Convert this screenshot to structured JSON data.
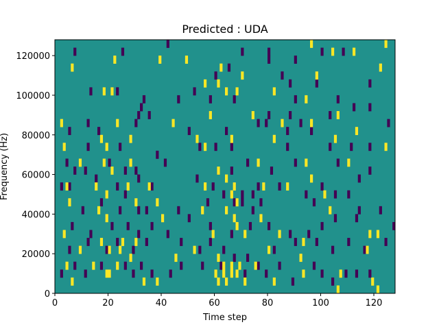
{
  "chart_data": {
    "type": "heatmap",
    "title": "Predicted : UDA",
    "xlabel": "Time step",
    "ylabel": "Frequency (Hz)",
    "xlim": [
      0,
      128
    ],
    "ylim": [
      0,
      128000
    ],
    "x_ticks": [
      0,
      20,
      40,
      60,
      80,
      100,
      120
    ],
    "y_ticks": [
      0,
      20000,
      40000,
      60000,
      80000,
      100000,
      120000
    ],
    "colors": {
      "background": "#21918c",
      "low": "#440154",
      "high": "#fde725"
    },
    "cell_width_steps": 1,
    "cell_height_hz": 4000,
    "low_cells": [
      [
        7,
        120000
      ],
      [
        25,
        120000
      ],
      [
        42,
        124000
      ],
      [
        70,
        120000
      ],
      [
        80,
        120000
      ],
      [
        80,
        116000
      ],
      [
        90,
        116000
      ],
      [
        100,
        120000
      ],
      [
        108,
        120000
      ],
      [
        60,
        108000
      ],
      [
        65,
        112000
      ],
      [
        85,
        108000
      ],
      [
        88,
        104000
      ],
      [
        98,
        104000
      ],
      [
        118,
        104000
      ],
      [
        13,
        100000
      ],
      [
        23,
        100000
      ],
      [
        33,
        96000
      ],
      [
        46,
        96000
      ],
      [
        52,
        100000
      ],
      [
        58,
        96000
      ],
      [
        67,
        96000
      ],
      [
        90,
        96000
      ],
      [
        106,
        96000
      ],
      [
        32,
        92000
      ],
      [
        80,
        88000
      ],
      [
        88,
        88000
      ],
      [
        112,
        92000
      ],
      [
        118,
        92000
      ],
      [
        12,
        84000
      ],
      [
        31,
        88000
      ],
      [
        35,
        88000
      ],
      [
        76,
        84000
      ],
      [
        79,
        84000
      ],
      [
        87,
        80000
      ],
      [
        92,
        84000
      ],
      [
        103,
        88000
      ],
      [
        125,
        84000
      ],
      [
        5,
        80000
      ],
      [
        16,
        80000
      ],
      [
        30,
        84000
      ],
      [
        50,
        80000
      ],
      [
        64,
        80000
      ],
      [
        96,
        80000
      ],
      [
        12,
        72000
      ],
      [
        24,
        72000
      ],
      [
        38,
        68000
      ],
      [
        54,
        72000
      ],
      [
        60,
        72000
      ],
      [
        66,
        72000
      ],
      [
        87,
        72000
      ],
      [
        103,
        72000
      ],
      [
        111,
        72000
      ],
      [
        118,
        72000
      ],
      [
        4,
        64000
      ],
      [
        7,
        60000
      ],
      [
        11,
        60000
      ],
      [
        20,
        64000
      ],
      [
        26,
        60000
      ],
      [
        30,
        60000
      ],
      [
        41,
        64000
      ],
      [
        61,
        60000
      ],
      [
        66,
        60000
      ],
      [
        72,
        64000
      ],
      [
        81,
        60000
      ],
      [
        90,
        64000
      ],
      [
        106,
        64000
      ],
      [
        114,
        56000
      ],
      [
        118,
        60000
      ],
      [
        2,
        52000
      ],
      [
        5,
        52000
      ],
      [
        15,
        56000
      ],
      [
        23,
        52000
      ],
      [
        26,
        48000
      ],
      [
        31,
        56000
      ],
      [
        36,
        52000
      ],
      [
        53,
        56000
      ],
      [
        59,
        52000
      ],
      [
        63,
        48000
      ],
      [
        70,
        48000
      ],
      [
        74,
        48000
      ],
      [
        76,
        52000
      ],
      [
        84,
        52000
      ],
      [
        94,
        48000
      ],
      [
        100,
        52000
      ],
      [
        105,
        48000
      ],
      [
        110,
        48000
      ],
      [
        10,
        40000
      ],
      [
        17,
        44000
      ],
      [
        24,
        40000
      ],
      [
        31,
        40000
      ],
      [
        34,
        40000
      ],
      [
        46,
        40000
      ],
      [
        57,
        44000
      ],
      [
        67,
        44000
      ],
      [
        70,
        44000
      ],
      [
        74,
        40000
      ],
      [
        77,
        44000
      ],
      [
        97,
        44000
      ],
      [
        114,
        40000
      ],
      [
        122,
        40000
      ],
      [
        6,
        32000
      ],
      [
        13,
        28000
      ],
      [
        21,
        32000
      ],
      [
        27,
        32000
      ],
      [
        31,
        28000
      ],
      [
        36,
        32000
      ],
      [
        42,
        28000
      ],
      [
        50,
        36000
      ],
      [
        58,
        32000
      ],
      [
        66,
        28000
      ],
      [
        73,
        32000
      ],
      [
        80,
        32000
      ],
      [
        88,
        28000
      ],
      [
        95,
        28000
      ],
      [
        100,
        32000
      ],
      [
        105,
        36000
      ],
      [
        113,
        36000
      ],
      [
        127,
        32000
      ],
      [
        5,
        20000
      ],
      [
        12,
        24000
      ],
      [
        19,
        20000
      ],
      [
        23,
        24000
      ],
      [
        29,
        20000
      ],
      [
        34,
        24000
      ],
      [
        47,
        24000
      ],
      [
        54,
        20000
      ],
      [
        58,
        24000
      ],
      [
        63,
        20000
      ],
      [
        67,
        16000
      ],
      [
        72,
        16000
      ],
      [
        82,
        20000
      ],
      [
        90,
        24000
      ],
      [
        98,
        24000
      ],
      [
        104,
        20000
      ],
      [
        110,
        24000
      ],
      [
        116,
        20000
      ],
      [
        124,
        24000
      ],
      [
        2,
        8000
      ],
      [
        7,
        12000
      ],
      [
        11,
        8000
      ],
      [
        17,
        12000
      ],
      [
        26,
        12000
      ],
      [
        29,
        8000
      ],
      [
        32,
        12000
      ],
      [
        36,
        8000
      ],
      [
        43,
        8000
      ],
      [
        47,
        12000
      ],
      [
        55,
        12000
      ],
      [
        62,
        12000
      ],
      [
        71,
        8000
      ],
      [
        76,
        12000
      ],
      [
        79,
        8000
      ],
      [
        84,
        12000
      ],
      [
        89,
        4000
      ],
      [
        97,
        12000
      ],
      [
        100,
        8000
      ],
      [
        104,
        4000
      ],
      [
        109,
        8000
      ],
      [
        113,
        8000
      ],
      [
        118,
        8000
      ]
    ],
    "high_cells": [
      [
        96,
        124000
      ],
      [
        104,
        120000
      ],
      [
        112,
        120000
      ],
      [
        124,
        124000
      ],
      [
        6,
        112000
      ],
      [
        22,
        116000
      ],
      [
        39,
        116000
      ],
      [
        49,
        116000
      ],
      [
        62,
        112000
      ],
      [
        70,
        108000
      ],
      [
        98,
        108000
      ],
      [
        122,
        112000
      ],
      [
        18,
        100000
      ],
      [
        21,
        100000
      ],
      [
        56,
        104000
      ],
      [
        61,
        104000
      ],
      [
        64,
        100000
      ],
      [
        68,
        100000
      ],
      [
        82,
        100000
      ],
      [
        94,
        96000
      ],
      [
        2,
        84000
      ],
      [
        23,
        84000
      ],
      [
        44,
        84000
      ],
      [
        58,
        88000
      ],
      [
        74,
        88000
      ],
      [
        85,
        84000
      ],
      [
        96,
        84000
      ],
      [
        106,
        88000
      ],
      [
        113,
        80000
      ],
      [
        3,
        72000
      ],
      [
        17,
        76000
      ],
      [
        19,
        72000
      ],
      [
        28,
        76000
      ],
      [
        53,
        76000
      ],
      [
        56,
        72000
      ],
      [
        66,
        76000
      ],
      [
        82,
        76000
      ],
      [
        105,
        76000
      ],
      [
        124,
        72000
      ],
      [
        9,
        64000
      ],
      [
        18,
        64000
      ],
      [
        21,
        60000
      ],
      [
        28,
        64000
      ],
      [
        61,
        60000
      ],
      [
        64,
        56000
      ],
      [
        76,
        64000
      ],
      [
        94,
        64000
      ],
      [
        110,
        64000
      ],
      [
        4,
        52000
      ],
      [
        15,
        52000
      ],
      [
        19,
        48000
      ],
      [
        27,
        52000
      ],
      [
        35,
        52000
      ],
      [
        56,
        52000
      ],
      [
        66,
        48000
      ],
      [
        67,
        52000
      ],
      [
        68,
        44000
      ],
      [
        78,
        52000
      ],
      [
        87,
        52000
      ],
      [
        96,
        56000
      ],
      [
        101,
        48000
      ],
      [
        5,
        44000
      ],
      [
        16,
        40000
      ],
      [
        30,
        44000
      ],
      [
        38,
        44000
      ],
      [
        55,
        40000
      ],
      [
        64,
        40000
      ],
      [
        67,
        36000
      ],
      [
        68,
        32000
      ],
      [
        77,
        36000
      ],
      [
        103,
        40000
      ],
      [
        3,
        28000
      ],
      [
        19,
        36000
      ],
      [
        25,
        24000
      ],
      [
        30,
        24000
      ],
      [
        40,
        36000
      ],
      [
        59,
        28000
      ],
      [
        71,
        28000
      ],
      [
        84,
        28000
      ],
      [
        93,
        24000
      ],
      [
        118,
        28000
      ],
      [
        121,
        28000
      ],
      [
        9,
        20000
      ],
      [
        17,
        24000
      ],
      [
        20,
        20000
      ],
      [
        24,
        20000
      ],
      [
        28,
        16000
      ],
      [
        45,
        16000
      ],
      [
        52,
        20000
      ],
      [
        61,
        16000
      ],
      [
        63,
        12000
      ],
      [
        66,
        12000
      ],
      [
        69,
        12000
      ],
      [
        80,
        20000
      ],
      [
        92,
        16000
      ],
      [
        117,
        20000
      ],
      [
        4,
        12000
      ],
      [
        14,
        12000
      ],
      [
        19,
        8000
      ],
      [
        20,
        8000
      ],
      [
        23,
        12000
      ],
      [
        33,
        4000
      ],
      [
        38,
        4000
      ],
      [
        60,
        8000
      ],
      [
        61,
        4000
      ],
      [
        63,
        8000
      ],
      [
        64,
        4000
      ],
      [
        66,
        8000
      ],
      [
        68,
        8000
      ],
      [
        71,
        4000
      ],
      [
        75,
        12000
      ],
      [
        82,
        4000
      ],
      [
        93,
        8000
      ],
      [
        107,
        8000
      ],
      [
        119,
        4000
      ],
      [
        121,
        0
      ],
      [
        106,
        0
      ],
      [
        6,
        4000
      ]
    ]
  }
}
